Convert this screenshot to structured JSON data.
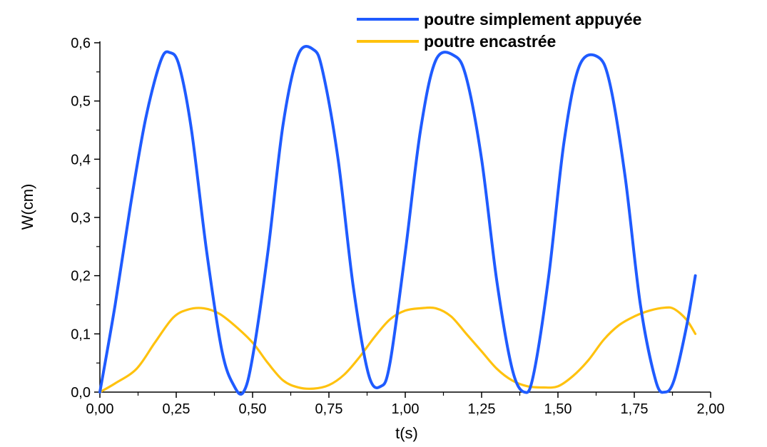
{
  "chart_data": {
    "type": "line",
    "xlabel": "t(s)",
    "ylabel": "W(cm)",
    "xlim": [
      0,
      2.0
    ],
    "ylim": [
      0,
      0.6
    ],
    "x_ticks": [
      "0,00",
      "0,25",
      "0,50",
      "0,75",
      "1,00",
      "1,25",
      "1,50",
      "1,75",
      "2,00"
    ],
    "x_tick_values": [
      0,
      0.25,
      0.5,
      0.75,
      1.0,
      1.25,
      1.5,
      1.75,
      2.0
    ],
    "y_ticks": [
      "0,0",
      "0,1",
      "0,2",
      "0,3",
      "0,4",
      "0,5",
      "0,6"
    ],
    "y_tick_values": [
      0,
      0.1,
      0.2,
      0.3,
      0.4,
      0.5,
      0.6
    ],
    "grid": false,
    "legend_position": "top-right",
    "series": [
      {
        "name": "poutre simplement appuyée",
        "color": "#1f5bff",
        "x": [
          0,
          0.05,
          0.1,
          0.15,
          0.2,
          0.23,
          0.26,
          0.3,
          0.35,
          0.4,
          0.44,
          0.47,
          0.5,
          0.55,
          0.6,
          0.65,
          0.7,
          0.73,
          0.78,
          0.83,
          0.88,
          0.92,
          0.95,
          1.0,
          1.05,
          1.1,
          1.16,
          1.2,
          1.25,
          1.3,
          1.35,
          1.39,
          1.42,
          1.47,
          1.52,
          1.57,
          1.63,
          1.67,
          1.72,
          1.77,
          1.82,
          1.85,
          1.88,
          1.92,
          1.95
        ],
        "y": [
          0,
          0.15,
          0.32,
          0.47,
          0.57,
          0.583,
          0.56,
          0.45,
          0.24,
          0.07,
          0.01,
          0,
          0.06,
          0.24,
          0.46,
          0.58,
          0.588,
          0.55,
          0.4,
          0.18,
          0.03,
          0.01,
          0.05,
          0.24,
          0.45,
          0.57,
          0.578,
          0.54,
          0.4,
          0.19,
          0.04,
          0,
          0.03,
          0.2,
          0.43,
          0.56,
          0.576,
          0.53,
          0.37,
          0.15,
          0.02,
          0,
          0.02,
          0.11,
          0.2
        ]
      },
      {
        "name": "poutre encastrée",
        "color": "#ffc20e",
        "x": [
          0,
          0.05,
          0.12,
          0.18,
          0.24,
          0.29,
          0.34,
          0.39,
          0.44,
          0.5,
          0.55,
          0.6,
          0.65,
          0.7,
          0.75,
          0.8,
          0.85,
          0.9,
          0.95,
          1.0,
          1.05,
          1.1,
          1.15,
          1.2,
          1.25,
          1.3,
          1.35,
          1.4,
          1.45,
          1.5,
          1.55,
          1.6,
          1.65,
          1.7,
          1.75,
          1.8,
          1.85,
          1.88,
          1.92,
          1.95
        ],
        "y": [
          0,
          0.015,
          0.04,
          0.085,
          0.128,
          0.142,
          0.144,
          0.135,
          0.115,
          0.085,
          0.05,
          0.02,
          0.008,
          0.006,
          0.012,
          0.03,
          0.06,
          0.095,
          0.125,
          0.14,
          0.144,
          0.144,
          0.13,
          0.1,
          0.07,
          0.04,
          0.02,
          0.01,
          0.008,
          0.01,
          0.028,
          0.055,
          0.09,
          0.115,
          0.13,
          0.14,
          0.145,
          0.143,
          0.125,
          0.1
        ]
      }
    ]
  }
}
